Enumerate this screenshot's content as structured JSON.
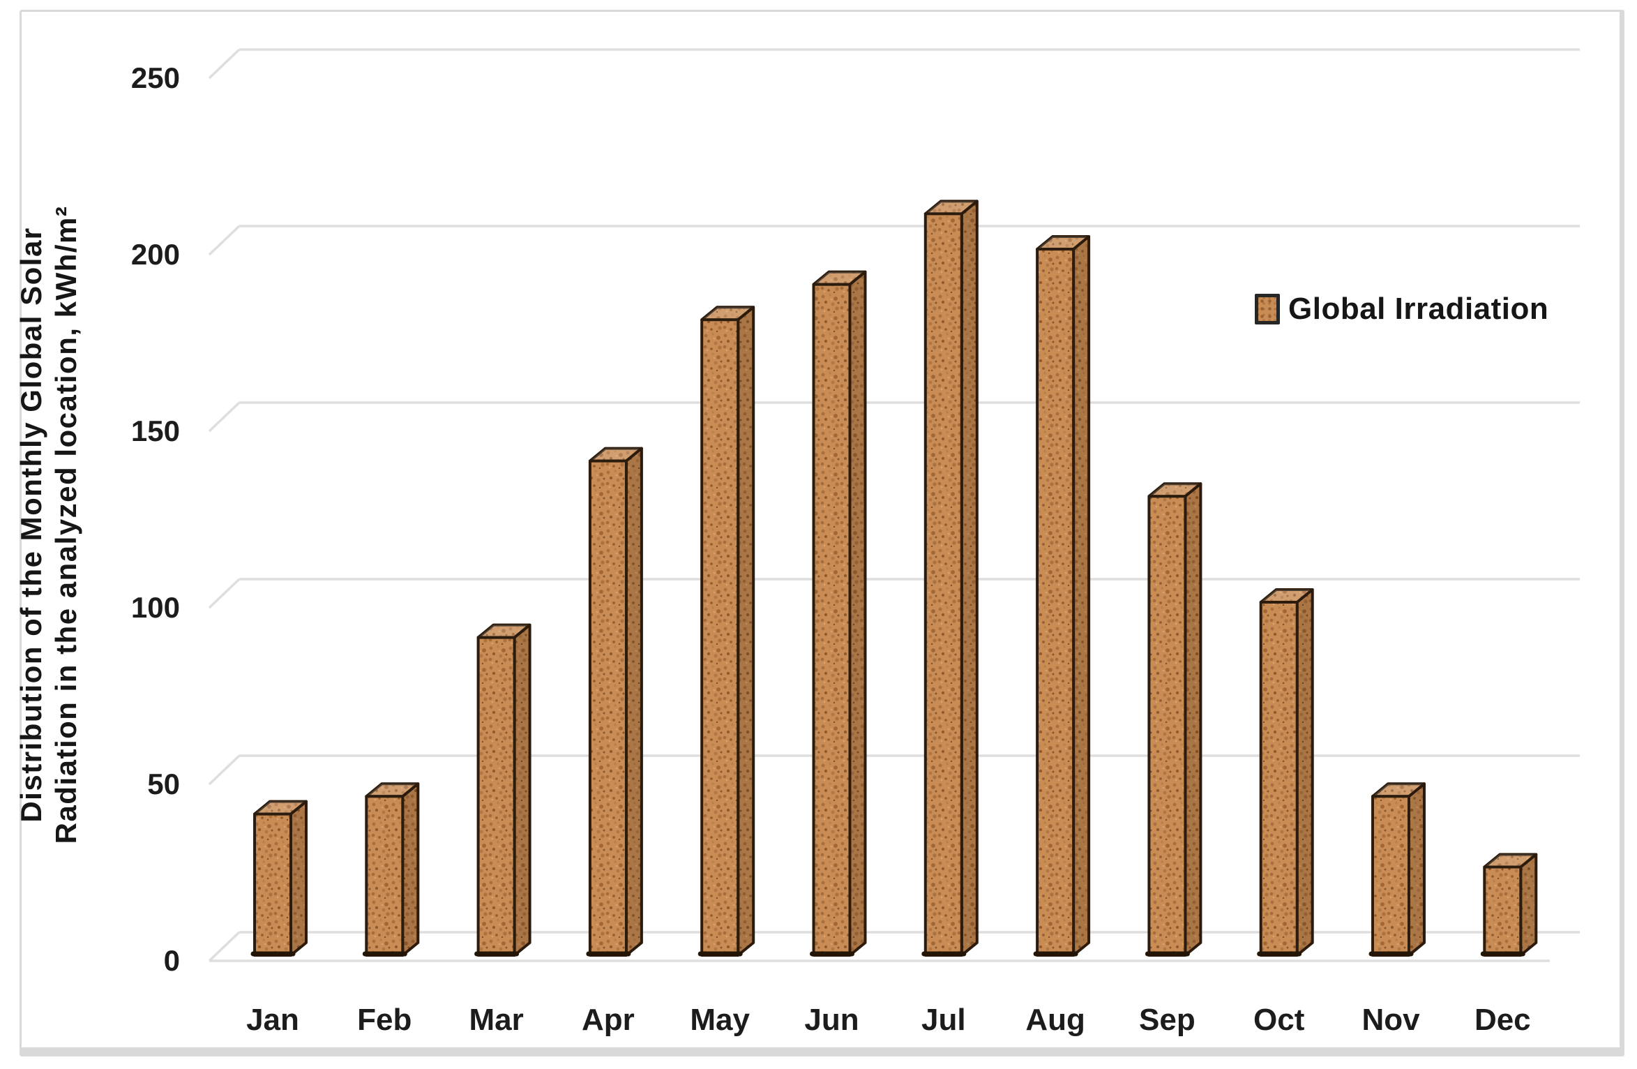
{
  "chart_data": {
    "type": "bar",
    "title": "",
    "categories": [
      "Jan",
      "Feb",
      "Mar",
      "Apr",
      "May",
      "Jun",
      "Jul",
      "Aug",
      "Sep",
      "Oct",
      "Nov",
      "Dec"
    ],
    "series": [
      {
        "name": "Global Irradiation",
        "values": [
          40,
          45,
          90,
          140,
          180,
          190,
          210,
          200,
          130,
          100,
          45,
          25
        ]
      }
    ],
    "ylabel": "Distribution of the Monthly Global Solar Radiation in the analyzed location, kWh/m²",
    "ylabel_lines": [
      "Distribution of the Monthly Global Solar",
      "Radiation in the analyzed location, kWh/m²"
    ],
    "xlabel": "",
    "yticks": [
      0,
      50,
      100,
      150,
      200,
      250
    ],
    "ylim": [
      0,
      250
    ],
    "grid": true,
    "legend": {
      "label": "Global Irradiation",
      "position": "right"
    },
    "style_3d": true,
    "colors": {
      "bar_fill": "#c98c55",
      "bar_speckle": "#9a6233",
      "bar_border": "#2c1c0d",
      "grid": "#dedede",
      "text": "#1c1c1c",
      "background": "#ffffff",
      "frame_border": "#d9d9d9"
    }
  }
}
